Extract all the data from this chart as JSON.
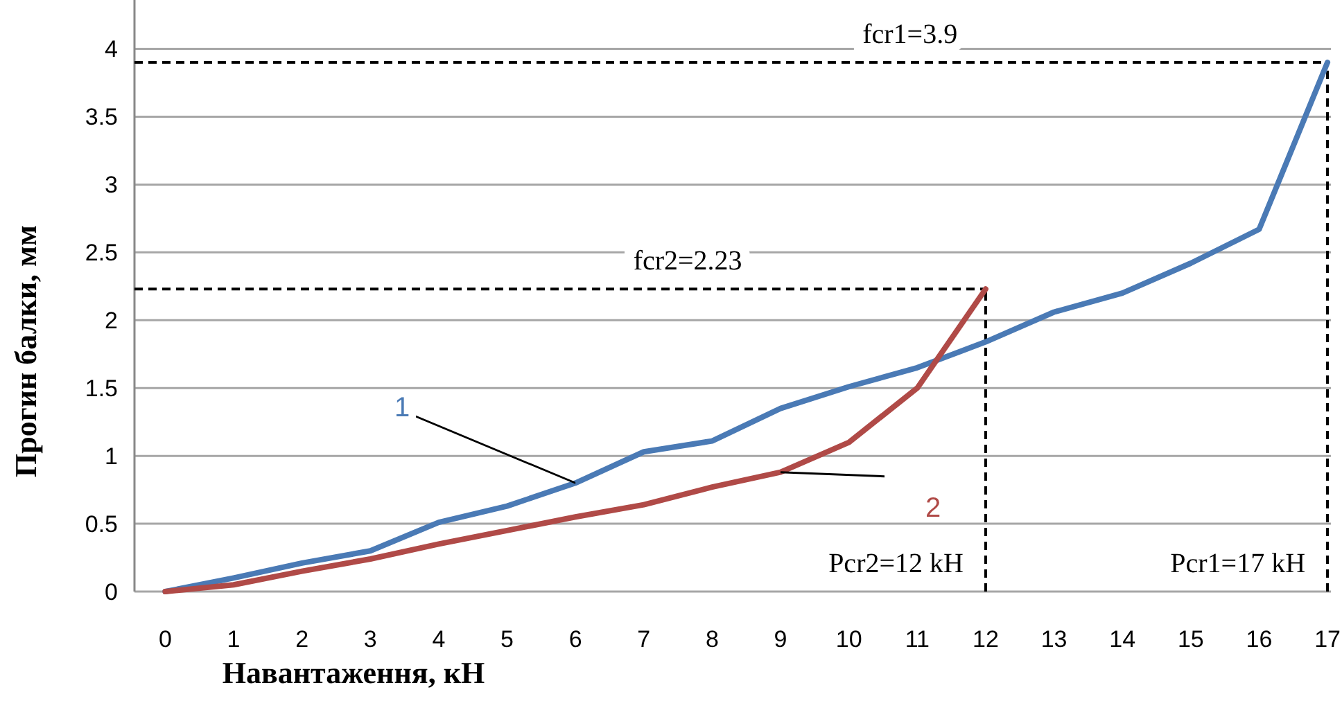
{
  "chart_data": {
    "type": "line",
    "xlabel": "Навантаження, кН",
    "ylabel": "Прогин балки, мм",
    "x": [
      0,
      1,
      2,
      3,
      4,
      5,
      6,
      7,
      8,
      9,
      10,
      11,
      12,
      13,
      14,
      15,
      16,
      17
    ],
    "xlim": [
      -0.45,
      17.05
    ],
    "xticks": [
      0,
      1,
      2,
      3,
      4,
      5,
      6,
      7,
      8,
      9,
      10,
      11,
      12,
      13,
      14,
      15,
      16,
      17
    ],
    "ylim": [
      0,
      4.36
    ],
    "yticks": [
      0,
      0.5,
      1,
      1.5,
      2,
      2.5,
      3,
      3.5,
      4
    ],
    "grid": "y",
    "marker": "none",
    "line_style": "solid",
    "series": [
      {
        "name": "1",
        "color": "#4a7ab5",
        "values": [
          0,
          0.1,
          0.21,
          0.3,
          0.51,
          0.63,
          0.8,
          1.03,
          1.11,
          1.35,
          1.51,
          1.65,
          1.84,
          2.06,
          2.2,
          2.42,
          2.67,
          3.9
        ]
      },
      {
        "name": "2",
        "color": "#b04a47",
        "values": [
          0,
          0.05,
          0.15,
          0.24,
          0.35,
          0.45,
          0.55,
          0.64,
          0.77,
          0.88,
          1.1,
          1.5,
          2.23,
          null,
          null,
          null,
          null,
          null
        ]
      }
    ],
    "ref_lines": [
      {
        "axis": "y",
        "value": 3.9,
        "label": "fcr1=3.9",
        "line_style": "dashed"
      },
      {
        "axis": "x",
        "value": 17,
        "label": "Pcr1=17 kH",
        "line_style": "dashed"
      },
      {
        "axis": "y",
        "value": 2.23,
        "label": "fcr2=2.23",
        "line_style": "dashed"
      },
      {
        "axis": "x",
        "value": 12,
        "label": "Pcr2=12 kH",
        "line_style": "dashed"
      }
    ]
  }
}
